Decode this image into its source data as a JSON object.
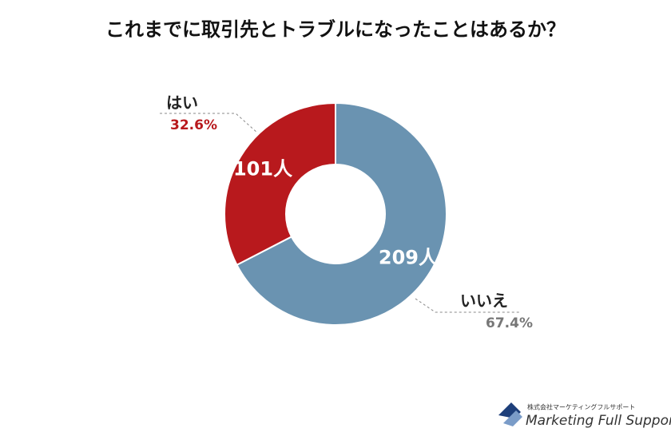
{
  "chart_data": {
    "type": "donut",
    "title": "これまでに取引先とトラブルになったことはあるか？",
    "categories": [
      "はい",
      "いいえ"
    ],
    "values": [
      101,
      209
    ],
    "value_labels": [
      "101人",
      "209人"
    ],
    "percentages": [
      32.6,
      67.4
    ],
    "percentage_labels": [
      "32.6%",
      "67.4%"
    ],
    "colors": [
      "#b8191d",
      "#6a93b1"
    ]
  },
  "logo": {
    "company": "株式会社マーケティングフルサポート",
    "name": "Marketing Full Support"
  }
}
